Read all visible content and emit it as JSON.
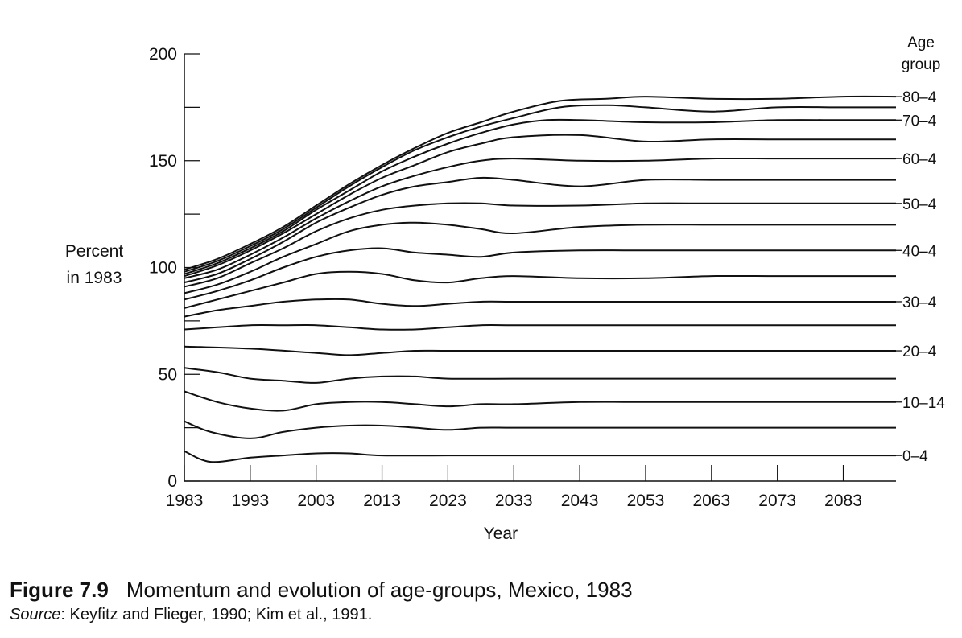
{
  "chart_data": {
    "type": "line",
    "title": "",
    "xlabel": "Year",
    "ylabel": "Percent in 1983",
    "ylabel_lines": [
      "Percent",
      "in 1983"
    ],
    "xlim": [
      1983,
      2091
    ],
    "ylim": [
      0,
      200
    ],
    "x_ticks": [
      1983,
      1993,
      2003,
      2013,
      2023,
      2033,
      2043,
      2053,
      2063,
      2073,
      2083
    ],
    "y_ticks_labeled": [
      0,
      50,
      100,
      150,
      200
    ],
    "y_minor_ticks": [
      25,
      75,
      125,
      175
    ],
    "grid": false,
    "legend_title": [
      "Age",
      "group"
    ],
    "legend_position": "right",
    "series": [
      {
        "name": "0–4",
        "x": [
          1983,
          1987,
          1993,
          1998,
          2003,
          2008,
          2013,
          2023,
          2033,
          2043,
          2053,
          2063,
          2073,
          2083,
          2091
        ],
        "values": [
          14,
          9,
          11,
          12,
          13,
          13,
          12,
          12,
          12,
          12,
          12,
          12,
          12,
          12,
          12
        ]
      },
      {
        "name": "",
        "x": [
          1983,
          1987,
          1993,
          1998,
          2003,
          2008,
          2013,
          2018,
          2023,
          2028,
          2033,
          2043,
          2053,
          2063,
          2073,
          2083,
          2091
        ],
        "values": [
          28,
          23,
          20,
          23,
          25,
          26,
          26,
          25,
          24,
          25,
          25,
          25,
          25,
          25,
          25,
          25,
          25
        ]
      },
      {
        "name": "10–14",
        "x": [
          1983,
          1988,
          1993,
          1998,
          2003,
          2008,
          2013,
          2018,
          2023,
          2028,
          2033,
          2043,
          2053,
          2063,
          2073,
          2083,
          2091
        ],
        "values": [
          42,
          37,
          34,
          33,
          36,
          37,
          37,
          36,
          35,
          36,
          36,
          37,
          37,
          37,
          37,
          37,
          37
        ]
      },
      {
        "name": "",
        "x": [
          1983,
          1988,
          1993,
          1998,
          2003,
          2008,
          2013,
          2018,
          2023,
          2033,
          2043,
          2053,
          2063,
          2073,
          2083,
          2091
        ],
        "values": [
          53,
          51,
          48,
          47,
          46,
          48,
          49,
          49,
          48,
          48,
          48,
          48,
          48,
          48,
          48,
          48
        ]
      },
      {
        "name": "20–4",
        "x": [
          1983,
          1993,
          2003,
          2008,
          2013,
          2018,
          2023,
          2033,
          2043,
          2053,
          2063,
          2073,
          2083,
          2091
        ],
        "values": [
          63,
          62,
          60,
          59,
          60,
          61,
          61,
          61,
          61,
          61,
          61,
          61,
          61,
          61
        ]
      },
      {
        "name": "",
        "x": [
          1983,
          1988,
          1993,
          1998,
          2003,
          2008,
          2013,
          2018,
          2023,
          2028,
          2033,
          2043,
          2053,
          2063,
          2073,
          2083,
          2091
        ],
        "values": [
          71,
          72,
          73,
          73,
          73,
          72,
          71,
          71,
          72,
          73,
          73,
          73,
          73,
          73,
          73,
          73,
          73
        ]
      },
      {
        "name": "30–4",
        "x": [
          1983,
          1988,
          1993,
          1998,
          2003,
          2008,
          2013,
          2018,
          2023,
          2028,
          2033,
          2043,
          2053,
          2063,
          2073,
          2083,
          2091
        ],
        "values": [
          77,
          80,
          82,
          84,
          85,
          85,
          83,
          82,
          83,
          84,
          84,
          84,
          84,
          84,
          84,
          84,
          84
        ]
      },
      {
        "name": "",
        "x": [
          1983,
          1988,
          1993,
          1998,
          2003,
          2008,
          2013,
          2018,
          2023,
          2028,
          2033,
          2043,
          2053,
          2063,
          2073,
          2083,
          2091
        ],
        "values": [
          81,
          85,
          89,
          93,
          97,
          98,
          97,
          94,
          93,
          95,
          96,
          95,
          95,
          96,
          96,
          96,
          96
        ]
      },
      {
        "name": "40–4",
        "x": [
          1983,
          1988,
          1993,
          1998,
          2003,
          2008,
          2013,
          2018,
          2023,
          2028,
          2033,
          2043,
          2053,
          2063,
          2073,
          2083,
          2091
        ],
        "values": [
          85,
          89,
          94,
          100,
          105,
          108,
          109,
          107,
          106,
          105,
          107,
          108,
          108,
          108,
          108,
          108,
          108
        ]
      },
      {
        "name": "",
        "x": [
          1983,
          1988,
          1993,
          1998,
          2003,
          2008,
          2013,
          2018,
          2023,
          2028,
          2033,
          2043,
          2053,
          2063,
          2073,
          2083,
          2091
        ],
        "values": [
          88,
          92,
          98,
          105,
          111,
          117,
          120,
          121,
          120,
          118,
          116,
          119,
          120,
          120,
          120,
          120,
          120
        ]
      },
      {
        "name": "50–4",
        "x": [
          1983,
          1988,
          1993,
          1998,
          2003,
          2008,
          2013,
          2018,
          2023,
          2028,
          2033,
          2043,
          2053,
          2063,
          2073,
          2083,
          2091
        ],
        "values": [
          91,
          95,
          102,
          109,
          117,
          123,
          127,
          129,
          130,
          130,
          129,
          129,
          130,
          130,
          130,
          130,
          130
        ]
      },
      {
        "name": "",
        "x": [
          1983,
          1988,
          1993,
          1998,
          2003,
          2008,
          2013,
          2018,
          2023,
          2028,
          2033,
          2043,
          2053,
          2063,
          2073,
          2083,
          2091
        ],
        "values": [
          93,
          97,
          104,
          112,
          121,
          128,
          134,
          138,
          140,
          142,
          141,
          138,
          141,
          141,
          141,
          141,
          141
        ]
      },
      {
        "name": "60–4",
        "x": [
          1983,
          1988,
          1993,
          1998,
          2003,
          2008,
          2013,
          2018,
          2023,
          2028,
          2033,
          2043,
          2053,
          2063,
          2073,
          2083,
          2091
        ],
        "values": [
          95,
          99,
          106,
          114,
          123,
          131,
          138,
          143,
          147,
          150,
          151,
          150,
          150,
          151,
          151,
          151,
          151
        ]
      },
      {
        "name": "",
        "x": [
          1983,
          1988,
          1993,
          1998,
          2003,
          2008,
          2013,
          2018,
          2023,
          2028,
          2033,
          2043,
          2053,
          2063,
          2073,
          2083,
          2091
        ],
        "values": [
          96,
          101,
          108,
          116,
          125,
          134,
          142,
          148,
          154,
          158,
          161,
          162,
          159,
          160,
          160,
          160,
          160
        ]
      },
      {
        "name": "70–4",
        "x": [
          1983,
          1988,
          1993,
          1998,
          2003,
          2008,
          2013,
          2018,
          2023,
          2028,
          2033,
          2038,
          2043,
          2053,
          2063,
          2073,
          2083,
          2091
        ],
        "values": [
          97,
          102,
          109,
          117,
          127,
          136,
          145,
          152,
          158,
          163,
          167,
          169,
          169,
          168,
          168,
          169,
          169,
          169
        ]
      },
      {
        "name": "",
        "x": [
          1983,
          1988,
          1993,
          1998,
          2003,
          2008,
          2013,
          2018,
          2023,
          2028,
          2033,
          2040,
          2047,
          2053,
          2063,
          2073,
          2083,
          2091
        ],
        "values": [
          98,
          103,
          110,
          118,
          128,
          138,
          147,
          155,
          161,
          166,
          170,
          175,
          176,
          175,
          173,
          175,
          175,
          175
        ]
      },
      {
        "name": "80–4",
        "x": [
          1983,
          1988,
          1993,
          1998,
          2003,
          2008,
          2013,
          2018,
          2023,
          2028,
          2033,
          2040,
          2047,
          2053,
          2063,
          2073,
          2083,
          2091
        ],
        "values": [
          99,
          104,
          111,
          119,
          129,
          139,
          148,
          156,
          163,
          168,
          173,
          178,
          179,
          180,
          179,
          179,
          180,
          180
        ]
      }
    ]
  },
  "caption": {
    "figure_number": "Figure 7.9",
    "figure_title": "Momentum and evolution of age-groups, Mexico, 1983",
    "source_label": "Source",
    "source_text": ": Keyfitz and Flieger, 1990; Kim et al., 1991."
  }
}
